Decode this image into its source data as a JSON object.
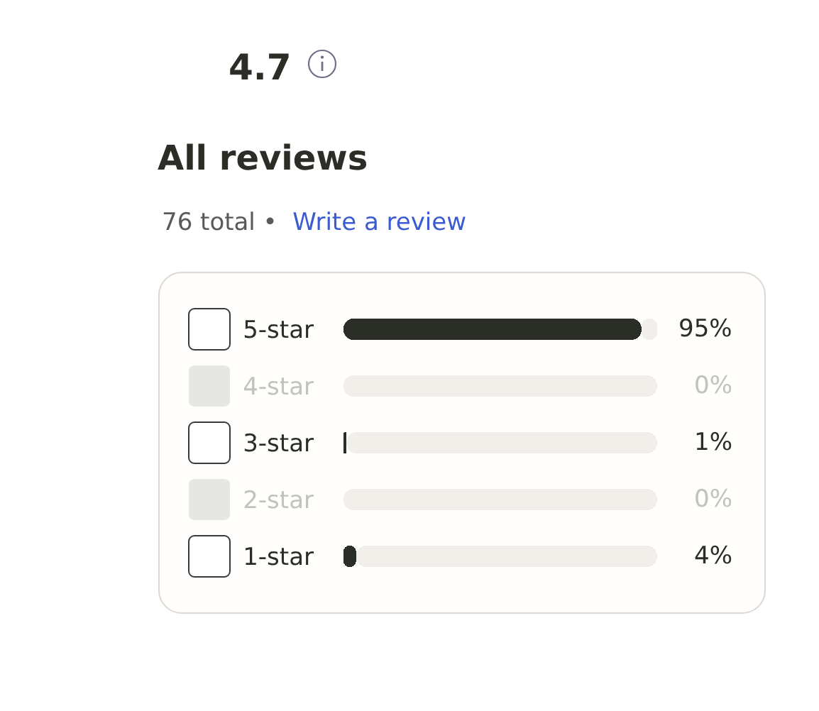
{
  "chart_data": {
    "type": "bar",
    "orientation": "horizontal",
    "stacked": true,
    "title": "All reviews",
    "subtitle": "76 total •",
    "annotations": [
      "4.7",
      "Write a review"
    ],
    "categories": [
      "5-star",
      "4-star",
      "3-star",
      "2-star",
      "1-star"
    ],
    "series": [
      {
        "color": "#2b2d27",
        "values": [
          95,
          0,
          1,
          0,
          4
        ],
        "value_labels": [
          "95%",
          "0%",
          "1%",
          "0%",
          "4%"
        ]
      },
      {
        "color": "#f2efea",
        "values": [
          5,
          100,
          99,
          100,
          96
        ]
      }
    ],
    "xlim": [
      0,
      100
    ],
    "tick_labels": "y"
  }
}
